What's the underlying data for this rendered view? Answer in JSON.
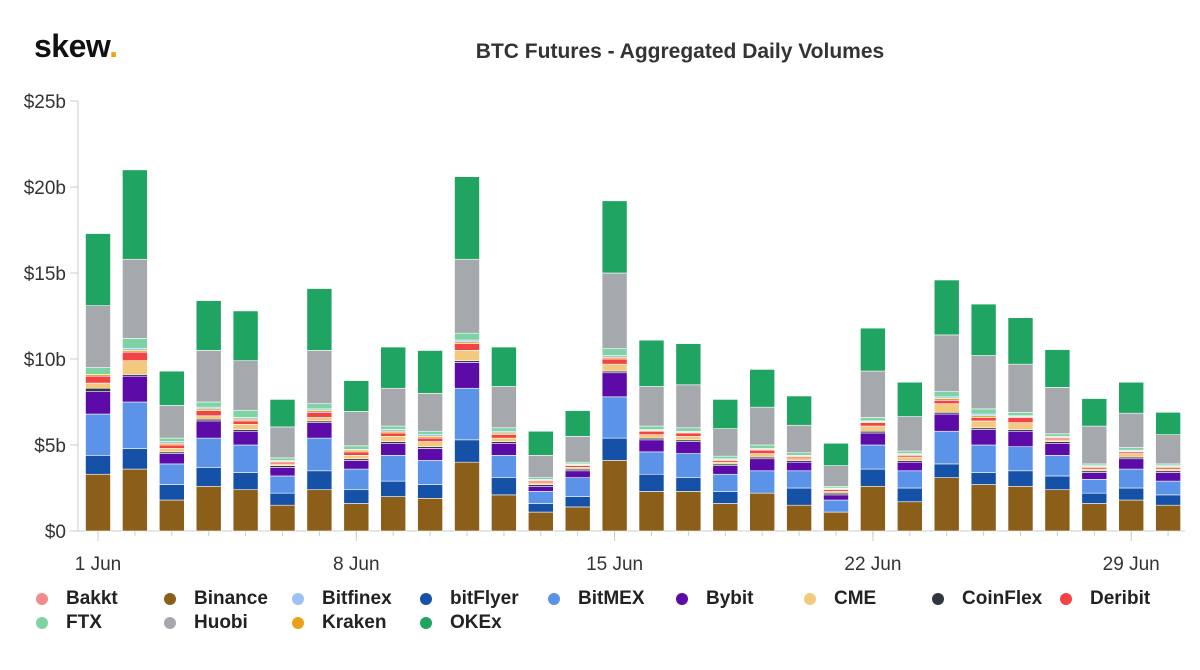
{
  "brand": {
    "name": "skew",
    "dot": "."
  },
  "chart_data": {
    "type": "bar",
    "stacked": true,
    "title": "BTC Futures - Aggregated Daily Volumes",
    "xlabel": "",
    "ylabel": "",
    "ylim": [
      0,
      25
    ],
    "y_ticks": [
      {
        "value": 0,
        "label": "$0"
      },
      {
        "value": 5,
        "label": "$5b"
      },
      {
        "value": 10,
        "label": "$10b"
      },
      {
        "value": 15,
        "label": "$15b"
      },
      {
        "value": 20,
        "label": "$20b"
      },
      {
        "value": 25,
        "label": "$25b"
      }
    ],
    "x_ticks": [
      {
        "day": 1,
        "label": "1 Jun"
      },
      {
        "day": 8,
        "label": "8 Jun"
      },
      {
        "day": 15,
        "label": "15 Jun"
      },
      {
        "day": 22,
        "label": "22 Jun"
      },
      {
        "day": 29,
        "label": "29 Jun"
      }
    ],
    "categories": [
      "2020-06-01",
      "2020-06-02",
      "2020-06-03",
      "2020-06-04",
      "2020-06-05",
      "2020-06-06",
      "2020-06-07",
      "2020-06-08",
      "2020-06-09",
      "2020-06-10",
      "2020-06-11",
      "2020-06-12",
      "2020-06-13",
      "2020-06-14",
      "2020-06-15",
      "2020-06-16",
      "2020-06-17",
      "2020-06-18",
      "2020-06-19",
      "2020-06-20",
      "2020-06-21",
      "2020-06-22",
      "2020-06-23",
      "2020-06-24",
      "2020-06-25",
      "2020-06-26",
      "2020-06-27",
      "2020-06-28",
      "2020-06-29",
      "2020-06-30"
    ],
    "grid": false,
    "legend_position": "bottom",
    "series": [
      {
        "name": "Binance",
        "color": "#8b5e1a",
        "values": [
          3.3,
          3.6,
          1.8,
          2.6,
          2.4,
          1.5,
          2.4,
          1.6,
          2.0,
          1.9,
          4.0,
          2.1,
          1.1,
          1.4,
          4.1,
          2.3,
          2.3,
          1.6,
          2.2,
          1.5,
          1.1,
          2.6,
          1.7,
          3.1,
          2.7,
          2.6,
          2.4,
          1.6,
          1.8,
          1.5
        ]
      },
      {
        "name": "bitFlyer",
        "color": "#1651a8",
        "values": [
          1.1,
          1.2,
          0.9,
          1.1,
          1.0,
          0.7,
          1.1,
          0.8,
          0.9,
          0.8,
          1.3,
          1.0,
          0.5,
          0.6,
          1.3,
          1.0,
          0.8,
          0.7,
          0.0,
          1.0,
          0.0,
          1.0,
          0.8,
          0.8,
          0.7,
          0.9,
          0.8,
          0.6,
          0.7,
          0.6
        ]
      },
      {
        "name": "BitMEX",
        "color": "#5b93e8",
        "values": [
          2.4,
          2.7,
          1.2,
          1.7,
          1.6,
          1.0,
          1.9,
          1.2,
          1.5,
          1.4,
          3.0,
          1.3,
          0.7,
          1.1,
          2.4,
          1.3,
          1.4,
          1.0,
          1.3,
          1.0,
          0.7,
          1.4,
          1.0,
          1.9,
          1.6,
          1.4,
          1.2,
          0.8,
          1.1,
          0.8
        ]
      },
      {
        "name": "Bybit",
        "color": "#5c0aa8",
        "values": [
          1.3,
          1.5,
          0.6,
          1.0,
          0.8,
          0.5,
          0.9,
          0.5,
          0.7,
          0.7,
          1.5,
          0.7,
          0.3,
          0.4,
          1.4,
          0.7,
          0.7,
          0.5,
          0.7,
          0.5,
          0.3,
          0.7,
          0.5,
          1.0,
          0.9,
          0.9,
          0.7,
          0.4,
          0.6,
          0.5
        ]
      },
      {
        "name": "CoinFlex",
        "color": "#2f3640",
        "values": [
          0.2,
          0.1,
          0.1,
          0.1,
          0.1,
          0.1,
          0.1,
          0.1,
          0.1,
          0.1,
          0.1,
          0.1,
          0.1,
          0.1,
          0.1,
          0.1,
          0.1,
          0.1,
          0.1,
          0.1,
          0.1,
          0.1,
          0.1,
          0.1,
          0.1,
          0.1,
          0.1,
          0.1,
          0.1,
          0.1
        ]
      },
      {
        "name": "CME",
        "color": "#f2c97e",
        "values": [
          0.3,
          0.8,
          0.2,
          0.2,
          0.3,
          0.1,
          0.2,
          0.2,
          0.3,
          0.3,
          0.6,
          0.2,
          0.1,
          0.1,
          0.4,
          0.2,
          0.2,
          0.1,
          0.2,
          0.1,
          0.1,
          0.3,
          0.2,
          0.5,
          0.4,
          0.4,
          0.1,
          0.1,
          0.2,
          0.1
        ]
      },
      {
        "name": "Deribit",
        "color": "#f24444",
        "values": [
          0.4,
          0.5,
          0.2,
          0.3,
          0.2,
          0.1,
          0.3,
          0.2,
          0.2,
          0.2,
          0.4,
          0.2,
          0.1,
          0.1,
          0.3,
          0.2,
          0.2,
          0.1,
          0.2,
          0.1,
          0.1,
          0.2,
          0.1,
          0.2,
          0.2,
          0.3,
          0.1,
          0.1,
          0.1,
          0.1
        ]
      },
      {
        "name": "Kraken",
        "color": "#e8a11a",
        "values": [
          0.1,
          0.1,
          0.1,
          0.1,
          0.1,
          0.05,
          0.1,
          0.1,
          0.1,
          0.1,
          0.1,
          0.1,
          0.05,
          0.05,
          0.1,
          0.05,
          0.05,
          0.05,
          0.05,
          0.05,
          0.05,
          0.05,
          0.05,
          0.1,
          0.1,
          0.05,
          0.05,
          0.05,
          0.05,
          0.05
        ]
      },
      {
        "name": "Bitfinex",
        "color": "#9bc1f5",
        "values": [
          0.0,
          0.1,
          0.1,
          0.1,
          0.1,
          0.05,
          0.1,
          0.05,
          0.1,
          0.1,
          0.1,
          0.1,
          0.05,
          0.05,
          0.1,
          0.05,
          0.05,
          0.05,
          0.05,
          0.05,
          0.05,
          0.05,
          0.05,
          0.1,
          0.1,
          0.05,
          0.05,
          0.05,
          0.05,
          0.05
        ]
      },
      {
        "name": "FTX",
        "color": "#7dd3a3",
        "values": [
          0.4,
          0.6,
          0.2,
          0.3,
          0.4,
          0.15,
          0.3,
          0.2,
          0.2,
          0.2,
          0.4,
          0.2,
          0.1,
          0.1,
          0.4,
          0.2,
          0.2,
          0.15,
          0.2,
          0.15,
          0.1,
          0.2,
          0.15,
          0.3,
          0.3,
          0.2,
          0.15,
          0.1,
          0.15,
          0.1
        ]
      },
      {
        "name": "Huobi",
        "color": "#a5a9ae",
        "values": [
          3.6,
          4.6,
          1.9,
          3.0,
          2.9,
          1.8,
          3.1,
          2.0,
          2.2,
          2.2,
          4.3,
          2.4,
          1.3,
          1.5,
          4.4,
          2.3,
          2.5,
          1.6,
          2.2,
          1.6,
          1.2,
          2.7,
          2.0,
          3.3,
          3.1,
          2.8,
          2.7,
          2.2,
          2.0,
          1.7
        ]
      },
      {
        "name": "OKEx",
        "color": "#1fa462",
        "values": [
          4.2,
          5.2,
          2.0,
          2.9,
          2.9,
          1.6,
          3.6,
          1.8,
          2.4,
          2.5,
          4.8,
          2.3,
          1.4,
          1.5,
          4.2,
          2.7,
          2.4,
          1.7,
          2.2,
          1.7,
          1.3,
          2.5,
          2.0,
          3.2,
          3.0,
          2.7,
          2.2,
          1.6,
          1.8,
          1.3
        ]
      },
      {
        "name": "Bakkt",
        "color": "#f28c8c",
        "values": [
          0.01,
          0.01,
          0.01,
          0.01,
          0.01,
          0.0,
          0.01,
          0.01,
          0.01,
          0.01,
          0.01,
          0.01,
          0.0,
          0.0,
          0.01,
          0.01,
          0.01,
          0.0,
          0.01,
          0.0,
          0.0,
          0.01,
          0.0,
          0.01,
          0.01,
          0.01,
          0.01,
          0.0,
          0.01,
          0.0
        ]
      }
    ],
    "legend": [
      "Bakkt",
      "Binance",
      "Bitfinex",
      "bitFlyer",
      "BitMEX",
      "Bybit",
      "CME",
      "CoinFlex",
      "Deribit",
      "FTX",
      "Huobi",
      "Kraken",
      "OKEx"
    ]
  }
}
